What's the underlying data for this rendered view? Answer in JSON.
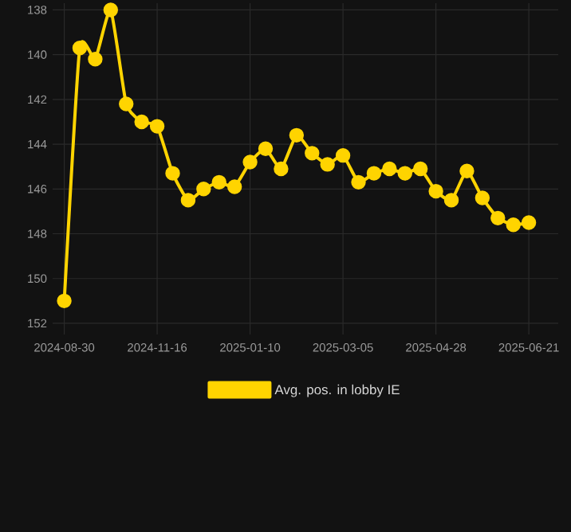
{
  "chart_data": {
    "type": "line",
    "categories": [
      "2024-08-30",
      null,
      null,
      null,
      null,
      null,
      "2024-11-16",
      null,
      null,
      null,
      null,
      null,
      "2025-01-10",
      null,
      null,
      null,
      null,
      null,
      "2025-03-05",
      null,
      null,
      null,
      null,
      null,
      "2025-04-28",
      null,
      null,
      null,
      null,
      null,
      "2025-06-21"
    ],
    "series": [
      {
        "name": "Avg. pos. in lobby IE",
        "color": "#ffd400",
        "values": [
          151.0,
          139.7,
          140.2,
          138.0,
          142.2,
          143.0,
          143.2,
          145.3,
          146.5,
          146.0,
          145.7,
          145.9,
          144.8,
          144.2,
          145.1,
          143.6,
          144.4,
          144.9,
          144.5,
          145.7,
          145.3,
          145.1,
          145.3,
          145.1,
          146.1,
          146.5,
          145.2,
          146.4,
          147.3,
          147.6,
          147.5
        ]
      }
    ],
    "ylim": [
      152.5,
      137.7
    ],
    "yticks": [
      138,
      140,
      142,
      144,
      146,
      148,
      150,
      152
    ],
    "grid": true,
    "legend": "bottom",
    "marker": "circle"
  }
}
